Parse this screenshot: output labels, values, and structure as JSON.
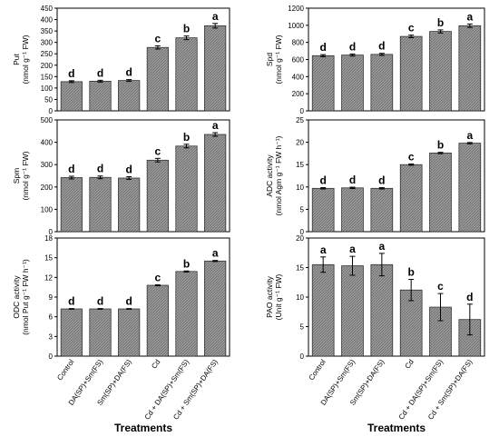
{
  "chart_data": [
    {
      "type": "bar",
      "panel": "left-top",
      "categories": [
        "Control",
        "DA(SP)+Sm(FS)",
        "Sm(SP)+DA(FS)",
        "Cd",
        "Cd + DA(SP)+Sm(FS)",
        "Cd + Sm(SP)+DA(FS)"
      ],
      "values": [
        128,
        130,
        133,
        278,
        320,
        373
      ],
      "errors": [
        4,
        4,
        4,
        7,
        8,
        10
      ],
      "letters": [
        "d",
        "d",
        "d",
        "c",
        "b",
        "a"
      ],
      "ylabel_lines": [
        "Put",
        "(nmol g⁻¹ FW)"
      ],
      "ylim": [
        0,
        450
      ],
      "yticks": [
        "0",
        "50",
        "100",
        "150",
        "200",
        "250",
        "300",
        "350",
        "400",
        "450"
      ],
      "show_x_labels": false,
      "xlabel": ""
    },
    {
      "type": "bar",
      "panel": "right-top",
      "categories": [
        "Control",
        "DA(SP)+Sm(FS)",
        "Sm(SP)+DA(FS)",
        "Cd",
        "Cd + DA(SP)+Sm(FS)",
        "Cd + Sm(SP)+DA(FS)"
      ],
      "values": [
        645,
        652,
        660,
        870,
        928,
        995
      ],
      "errors": [
        12,
        12,
        12,
        15,
        18,
        20
      ],
      "letters": [
        "d",
        "d",
        "d",
        "c",
        "b",
        "a"
      ],
      "ylabel_lines": [
        "Spd",
        "(nmol g⁻¹ FW)"
      ],
      "ylim": [
        0,
        1200
      ],
      "yticks": [
        "0",
        "200",
        "400",
        "600",
        "800",
        "1000",
        "1200"
      ],
      "show_x_labels": false,
      "xlabel": ""
    },
    {
      "type": "bar",
      "panel": "left-middle",
      "categories": [
        "Control",
        "DA(SP)+Sm(FS)",
        "Sm(SP)+DA(FS)",
        "Cd",
        "Cd + DA(SP)+Sm(FS)",
        "Cd + Sm(SP)+DA(FS)"
      ],
      "values": [
        242,
        243,
        240,
        320,
        383,
        435
      ],
      "errors": [
        6,
        6,
        6,
        8,
        8,
        8
      ],
      "letters": [
        "d",
        "d",
        "d",
        "c",
        "b",
        "a"
      ],
      "ylabel_lines": [
        "Spm",
        "(nmol g⁻¹ FW)"
      ],
      "ylim": [
        0,
        500
      ],
      "yticks": [
        "0",
        "100",
        "200",
        "300",
        "400",
        "500"
      ],
      "show_x_labels": false,
      "xlabel": ""
    },
    {
      "type": "bar",
      "panel": "right-middle",
      "categories": [
        "Control",
        "DA(SP)+Sm(FS)",
        "Sm(SP)+DA(FS)",
        "Cd",
        "Cd + DA(SP)+Sm(FS)",
        "Cd + Sm(SP)+DA(FS)"
      ],
      "values": [
        9.7,
        9.8,
        9.7,
        15.0,
        17.6,
        19.8
      ],
      "errors": [
        0.15,
        0.15,
        0.15,
        0.15,
        0.15,
        0.15
      ],
      "letters": [
        "d",
        "d",
        "d",
        "c",
        "b",
        "a"
      ],
      "ylabel_lines": [
        "ADC activity",
        "(nmol Agm g⁻¹ FW h⁻¹)"
      ],
      "ylim": [
        0,
        25
      ],
      "yticks": [
        "0",
        "5",
        "10",
        "15",
        "20",
        "25"
      ],
      "show_x_labels": false,
      "xlabel": ""
    },
    {
      "type": "bar",
      "panel": "left-bottom",
      "categories": [
        "Control",
        "DA(SP)+Sm(FS)",
        "Sm(SP)+DA(FS)",
        "Cd",
        "Cd + DA(SP)+Sm(FS)",
        "Cd + Sm(SP)+DA(FS)"
      ],
      "values": [
        7.2,
        7.2,
        7.2,
        10.8,
        12.9,
        14.5
      ],
      "errors": [
        0.05,
        0.05,
        0.05,
        0.08,
        0.08,
        0.08
      ],
      "letters": [
        "d",
        "d",
        "d",
        "c",
        "b",
        "a"
      ],
      "ylabel_lines": [
        "ODC activity",
        "(nmol Put g⁻¹ FW h⁻¹)"
      ],
      "ylim": [
        0,
        18
      ],
      "yticks": [
        "0",
        "3",
        "6",
        "9",
        "12",
        "15",
        "18"
      ],
      "show_x_labels": true,
      "xlabel": "Treatments"
    },
    {
      "type": "bar",
      "panel": "right-bottom",
      "categories": [
        "Control",
        "DA(SP)+Sm(FS)",
        "Sm(SP)+DA(FS)",
        "Cd",
        "Cd + DA(SP)+Sm(FS)",
        "Cd + Sm(SP)+DA(FS)"
      ],
      "values": [
        15.5,
        15.3,
        15.5,
        11.2,
        8.3,
        6.2
      ],
      "errors": [
        1.3,
        1.6,
        1.9,
        1.8,
        2.3,
        2.6
      ],
      "letters": [
        "a",
        "a",
        "a",
        "b",
        "c",
        "d"
      ],
      "ylabel_lines": [
        "PAO activity",
        "(Unit g⁻¹ FW)"
      ],
      "ylim": [
        0,
        20
      ],
      "yticks": [
        "0",
        "5",
        "10",
        "15",
        "20"
      ],
      "show_x_labels": true,
      "xlabel": "Treatments"
    }
  ]
}
